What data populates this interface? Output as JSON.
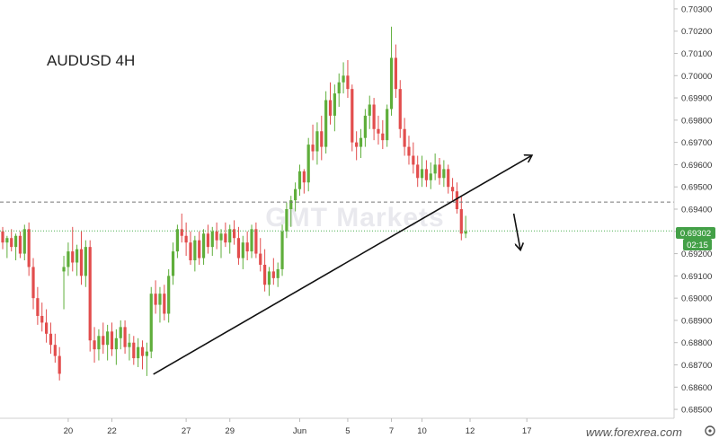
{
  "chart_data": {
    "type": "candlestick",
    "title": "AUDUSD 4H",
    "watermark": "GMT Markets",
    "brand": "www.forexrea.com",
    "y_ticks": [
      "0.70300",
      "0.70200",
      "0.70100",
      "0.70000",
      "0.69900",
      "0.69800",
      "0.69700",
      "0.69600",
      "0.69500",
      "0.69400",
      "0.69300",
      "0.69200",
      "0.69100",
      "0.69000",
      "0.68900",
      "0.68800",
      "0.68700",
      "0.68600",
      "0.68500"
    ],
    "ylim": [
      0.6846,
      0.7034
    ],
    "x_labels": [
      {
        "label": "20",
        "index": 15
      },
      {
        "label": "22",
        "index": 25
      },
      {
        "label": "27",
        "index": 42
      },
      {
        "label": "29",
        "index": 52
      },
      {
        "label": "Jun",
        "index": 68
      },
      {
        "label": "5",
        "index": 79
      },
      {
        "label": "7",
        "index": 89
      },
      {
        "label": "10",
        "index": 96
      },
      {
        "label": "12",
        "index": 107
      },
      {
        "label": "17",
        "index": 120
      }
    ],
    "current_price": "0.69302",
    "countdown": "02:15",
    "resistance_level": 0.69432,
    "last_price": 0.69302,
    "trendline": {
      "start": {
        "index": 34.5,
        "price": 0.68658
      },
      "end": {
        "index": 121,
        "price": 0.6964
      }
    },
    "arrow_down": {
      "start": {
        "index": 117,
        "price": 0.6938
      },
      "end": {
        "index": 118.5,
        "price": 0.6922
      }
    },
    "colors": {
      "up": "#5fae3b",
      "down": "#e24d4d",
      "trendline": "#111111",
      "resistance": "#777777",
      "price_line": "#4caf50",
      "badge": "#43a047"
    },
    "candles": [
      [
        0.693,
        0.6932,
        0.6922,
        0.6925
      ],
      [
        0.6925,
        0.6928,
        0.6918,
        0.6927
      ],
      [
        0.6927,
        0.6931,
        0.6921,
        0.6923
      ],
      [
        0.6923,
        0.6929,
        0.6917,
        0.6928
      ],
      [
        0.6928,
        0.693,
        0.6918,
        0.692
      ],
      [
        0.692,
        0.6933,
        0.6917,
        0.6931
      ],
      [
        0.6931,
        0.6934,
        0.691,
        0.6914
      ],
      [
        0.6914,
        0.6918,
        0.6895,
        0.69
      ],
      [
        0.69,
        0.6905,
        0.6888,
        0.6892
      ],
      [
        0.6892,
        0.6898,
        0.6885,
        0.6889
      ],
      [
        0.6889,
        0.6895,
        0.688,
        0.6884
      ],
      [
        0.6884,
        0.6889,
        0.6875,
        0.6879
      ],
      [
        0.6879,
        0.6884,
        0.6871,
        0.6874
      ],
      [
        0.6874,
        0.6878,
        0.6863,
        0.6866
      ],
      [
        0.6912,
        0.6919,
        0.6895,
        0.6914
      ],
      [
        0.6914,
        0.6925,
        0.691,
        0.6921
      ],
      [
        0.6921,
        0.6932,
        0.6912,
        0.6916
      ],
      [
        0.6916,
        0.6924,
        0.691,
        0.6922
      ],
      [
        0.6922,
        0.693,
        0.6906,
        0.691
      ],
      [
        0.691,
        0.6926,
        0.6905,
        0.6923
      ],
      [
        0.6923,
        0.6926,
        0.6876,
        0.6881
      ],
      [
        0.6881,
        0.6887,
        0.6871,
        0.6877
      ],
      [
        0.6877,
        0.6886,
        0.6872,
        0.6883
      ],
      [
        0.6883,
        0.6889,
        0.6875,
        0.6879
      ],
      [
        0.6879,
        0.6888,
        0.6872,
        0.6885
      ],
      [
        0.6885,
        0.6889,
        0.6874,
        0.6877
      ],
      [
        0.6877,
        0.6886,
        0.687,
        0.6882
      ],
      [
        0.6882,
        0.689,
        0.6877,
        0.6887
      ],
      [
        0.6887,
        0.689,
        0.6875,
        0.6878
      ],
      [
        0.6878,
        0.6884,
        0.6872,
        0.688
      ],
      [
        0.688,
        0.6883,
        0.687,
        0.6873
      ],
      [
        0.6873,
        0.6882,
        0.6869,
        0.6878
      ],
      [
        0.6878,
        0.6881,
        0.6868,
        0.6874
      ],
      [
        0.6874,
        0.688,
        0.6865,
        0.6876
      ],
      [
        0.6876,
        0.6905,
        0.6873,
        0.6902
      ],
      [
        0.6902,
        0.6908,
        0.6893,
        0.6897
      ],
      [
        0.6897,
        0.6905,
        0.6889,
        0.6902
      ],
      [
        0.6902,
        0.6906,
        0.689,
        0.6893
      ],
      [
        0.6893,
        0.6913,
        0.6889,
        0.691
      ],
      [
        0.691,
        0.6925,
        0.6906,
        0.6921
      ],
      [
        0.6921,
        0.6933,
        0.6918,
        0.6931
      ],
      [
        0.6931,
        0.6938,
        0.6925,
        0.6928
      ],
      [
        0.6928,
        0.6934,
        0.6919,
        0.6925
      ],
      [
        0.6925,
        0.693,
        0.6915,
        0.6917
      ],
      [
        0.6917,
        0.6928,
        0.6912,
        0.6926
      ],
      [
        0.6926,
        0.693,
        0.6915,
        0.6918
      ],
      [
        0.6918,
        0.6931,
        0.6915,
        0.6929
      ],
      [
        0.6929,
        0.6933,
        0.692,
        0.6923
      ],
      [
        0.6923,
        0.6932,
        0.6919,
        0.693
      ],
      [
        0.693,
        0.6934,
        0.6922,
        0.6926
      ],
      [
        0.6926,
        0.6931,
        0.6918,
        0.6929
      ],
      [
        0.6929,
        0.6934,
        0.6923,
        0.6925
      ],
      [
        0.6925,
        0.6933,
        0.692,
        0.6931
      ],
      [
        0.6931,
        0.6935,
        0.6924,
        0.6927
      ],
      [
        0.6927,
        0.6932,
        0.6915,
        0.6918
      ],
      [
        0.6918,
        0.6928,
        0.6913,
        0.6925
      ],
      [
        0.6925,
        0.693,
        0.6917,
        0.6921
      ],
      [
        0.6921,
        0.6933,
        0.6918,
        0.6931
      ],
      [
        0.6931,
        0.6934,
        0.6918,
        0.692
      ],
      [
        0.692,
        0.6927,
        0.6912,
        0.6915
      ],
      [
        0.6915,
        0.6922,
        0.6903,
        0.6906
      ],
      [
        0.6906,
        0.6914,
        0.6901,
        0.6912
      ],
      [
        0.6912,
        0.6918,
        0.6906,
        0.6909
      ],
      [
        0.6909,
        0.6916,
        0.6905,
        0.6913
      ],
      [
        0.6913,
        0.6933,
        0.691,
        0.693
      ],
      [
        0.693,
        0.6943,
        0.6927,
        0.694
      ],
      [
        0.694,
        0.6946,
        0.6932,
        0.6944
      ],
      [
        0.6944,
        0.6952,
        0.6939,
        0.6949
      ],
      [
        0.6949,
        0.696,
        0.6946,
        0.6957
      ],
      [
        0.6957,
        0.6958,
        0.6947,
        0.6952
      ],
      [
        0.6952,
        0.6972,
        0.6948,
        0.6969
      ],
      [
        0.6969,
        0.6978,
        0.6962,
        0.6966
      ],
      [
        0.6966,
        0.6979,
        0.696,
        0.6975
      ],
      [
        0.6975,
        0.6982,
        0.6962,
        0.6968
      ],
      [
        0.6968,
        0.6993,
        0.6965,
        0.6989
      ],
      [
        0.6989,
        0.6997,
        0.6978,
        0.6982
      ],
      [
        0.6982,
        0.6996,
        0.6975,
        0.6992
      ],
      [
        0.6992,
        0.7001,
        0.6986,
        0.6997
      ],
      [
        0.6997,
        0.7006,
        0.6992,
        0.7
      ],
      [
        0.7,
        0.7007,
        0.699,
        0.6994
      ],
      [
        0.6994,
        0.6996,
        0.6966,
        0.697
      ],
      [
        0.697,
        0.6975,
        0.6962,
        0.6968
      ],
      [
        0.6968,
        0.6976,
        0.6963,
        0.6972
      ],
      [
        0.6972,
        0.6985,
        0.6968,
        0.6982
      ],
      [
        0.6982,
        0.6991,
        0.6976,
        0.6987
      ],
      [
        0.6987,
        0.699,
        0.6971,
        0.6976
      ],
      [
        0.6976,
        0.6982,
        0.6969,
        0.6974
      ],
      [
        0.6974,
        0.698,
        0.6967,
        0.6971
      ],
      [
        0.6971,
        0.6987,
        0.6968,
        0.6985
      ],
      [
        0.6985,
        0.7022,
        0.6982,
        0.7008
      ],
      [
        0.7008,
        0.7014,
        0.699,
        0.6994
      ],
      [
        0.6994,
        0.6998,
        0.6972,
        0.6976
      ],
      [
        0.6976,
        0.6981,
        0.6964,
        0.6968
      ],
      [
        0.6968,
        0.6973,
        0.696,
        0.6964
      ],
      [
        0.6964,
        0.697,
        0.6956,
        0.696
      ],
      [
        0.696,
        0.6964,
        0.695,
        0.6954
      ],
      [
        0.6954,
        0.6964,
        0.695,
        0.6958
      ],
      [
        0.6958,
        0.6962,
        0.695,
        0.6953
      ],
      [
        0.6953,
        0.6961,
        0.6949,
        0.6956
      ],
      [
        0.6956,
        0.6965,
        0.6953,
        0.696
      ],
      [
        0.696,
        0.6963,
        0.6951,
        0.6954
      ],
      [
        0.6954,
        0.6962,
        0.695,
        0.6958
      ],
      [
        0.6958,
        0.696,
        0.6947,
        0.695
      ],
      [
        0.695,
        0.6954,
        0.6944,
        0.6948
      ],
      [
        0.6948,
        0.6952,
        0.6938,
        0.694
      ],
      [
        0.694,
        0.6946,
        0.6926,
        0.6929
      ],
      [
        0.6929,
        0.6937,
        0.6927,
        0.693
      ]
    ]
  },
  "ui": {
    "title": "AUDUSD 4H",
    "watermark": "GMT Markets",
    "brand": "www.forexrea.com",
    "current_price": "0.69302",
    "countdown": "02:15"
  }
}
